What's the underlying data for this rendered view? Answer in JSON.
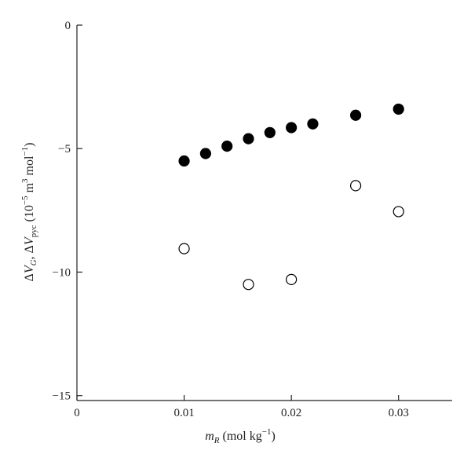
{
  "chart_data": {
    "type": "scatter",
    "xlabel": "m_R (mol kg⁻¹)",
    "ylabel": "ΔV_G, ΔV_pyc (10⁻⁵ m³ mol⁻¹)",
    "xlim": [
      0,
      0.035
    ],
    "ylim": [
      -15.2,
      0
    ],
    "x_ticks": [
      0,
      0.01,
      0.02,
      0.03
    ],
    "x_tick_labels": [
      "0",
      "0.01",
      "0.02",
      "0.03"
    ],
    "y_ticks": [
      0,
      -5,
      -10,
      -15
    ],
    "y_tick_labels": [
      "0",
      "−5",
      "−10",
      "−15"
    ],
    "grid": false,
    "series": [
      {
        "marker": "filled-circle",
        "color": "#000000",
        "x": [
          0.01,
          0.012,
          0.014,
          0.016,
          0.018,
          0.02,
          0.022,
          0.026,
          0.03
        ],
        "y": [
          -5.5,
          -5.2,
          -4.9,
          -4.6,
          -4.35,
          -4.15,
          -4.0,
          -3.65,
          -3.4
        ]
      },
      {
        "marker": "open-circle",
        "color": "#000000",
        "x": [
          0.01,
          0.016,
          0.02,
          0.026,
          0.03
        ],
        "y": [
          -9.05,
          -10.5,
          -10.3,
          -6.5,
          -7.55
        ]
      }
    ]
  }
}
